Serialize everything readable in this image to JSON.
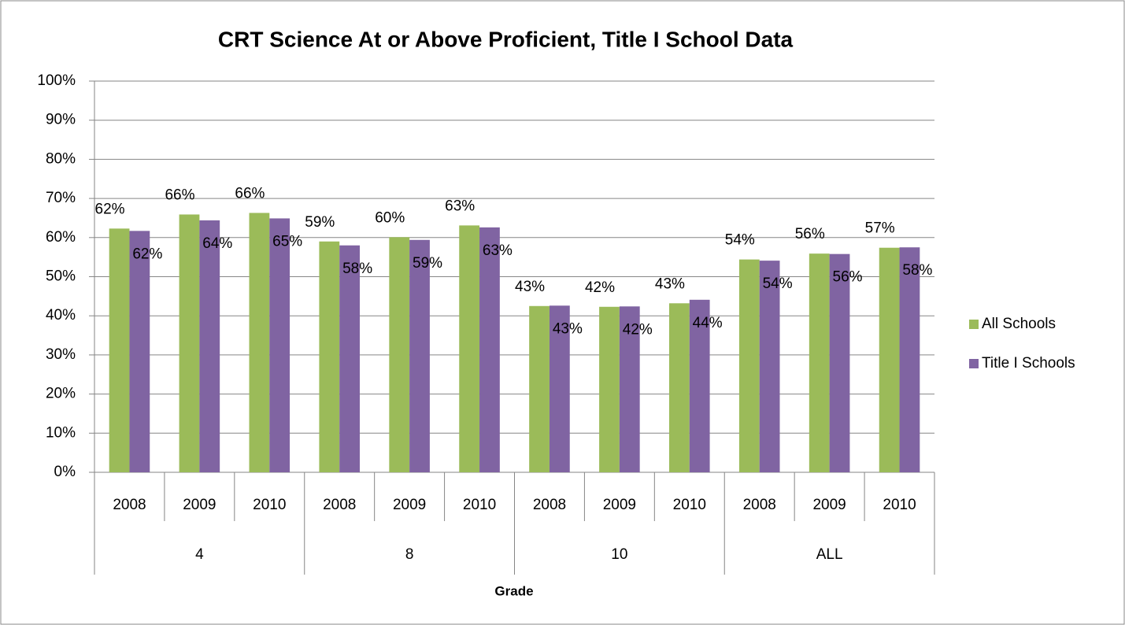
{
  "chart_data": {
    "type": "bar",
    "title": "CRT Science At or Above Proficient, Title I School Data",
    "x_label": "Grade",
    "categories": [
      "2008",
      "2009",
      "2010",
      "2008",
      "2009",
      "2010",
      "2008",
      "2009",
      "2010",
      "2008",
      "2009",
      "2010"
    ],
    "groups": [
      "4",
      "8",
      "10",
      "ALL"
    ],
    "series": [
      {
        "name": "All Schools",
        "color": "#9bbb59",
        "values": [
          62.3,
          65.9,
          66.3,
          59,
          60.1,
          63.1,
          42.5,
          42.3,
          43.2,
          54.4,
          55.9,
          57.4
        ],
        "value_labels": [
          "62%",
          "66%",
          "66%",
          "59%",
          "60%",
          "63%",
          "43%",
          "42%",
          "43%",
          "54%",
          "56%",
          "57%"
        ]
      },
      {
        "name": "Title I Schools",
        "color": "#8064a2",
        "values": [
          61.7,
          64.4,
          64.9,
          58,
          59.4,
          62.6,
          42.6,
          42.4,
          44.1,
          54.1,
          55.8,
          57.5
        ],
        "value_labels": [
          "62%",
          "64%",
          "65%",
          "58%",
          "59%",
          "63%",
          "43%",
          "42%",
          "44%",
          "54%",
          "56%",
          "58%"
        ]
      }
    ],
    "ylim": [
      0,
      100
    ],
    "yticks": [
      {
        "value": 0,
        "label": "0%"
      },
      {
        "value": 10,
        "label": "10%"
      },
      {
        "value": 20,
        "label": "20%"
      },
      {
        "value": 30,
        "label": "30%"
      },
      {
        "value": 40,
        "label": "40%"
      },
      {
        "value": 50,
        "label": "50%"
      },
      {
        "value": 60,
        "label": "60%"
      },
      {
        "value": 70,
        "label": "70%"
      },
      {
        "value": 80,
        "label": "80%"
      },
      {
        "value": 90,
        "label": "90%"
      },
      {
        "value": 100,
        "label": "100%"
      }
    ],
    "grid": true,
    "legend": "right"
  }
}
